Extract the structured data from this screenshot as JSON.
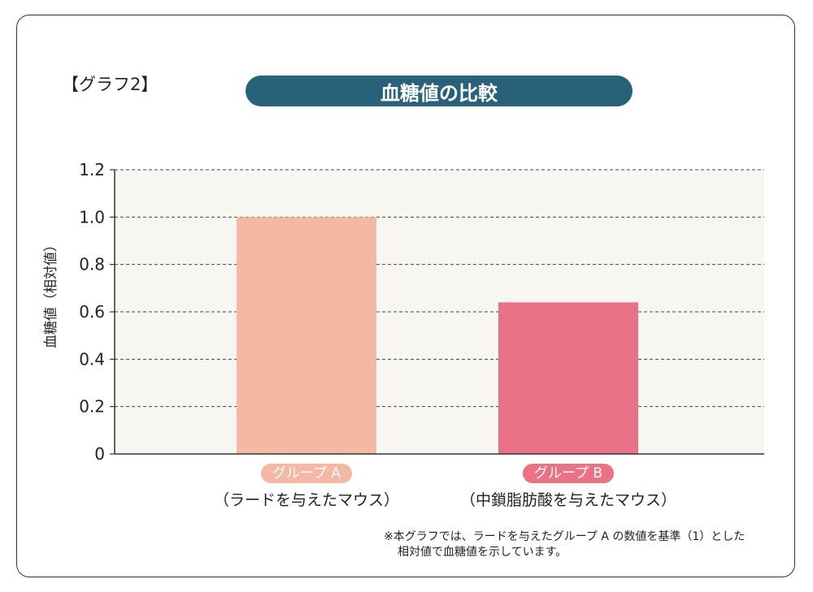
{
  "graph_label": "【グラフ2】",
  "chart_data": {
    "type": "bar",
    "title": "血糖値の比較",
    "ylabel": "血糖値（相対値）",
    "ylim": [
      0,
      1.2
    ],
    "yticks": [
      "0",
      "0.2",
      "0.4",
      "0.6",
      "0.8",
      "1.0",
      "1.2"
    ],
    "ytick_values": [
      0,
      0.2,
      0.4,
      0.6,
      0.8,
      1.0,
      1.2
    ],
    "grid": true,
    "categories": [
      {
        "name": "グループ A",
        "sub": "（ラードを与えたマウス）",
        "color": "#f4b9a4"
      },
      {
        "name": "グループ B",
        "sub": "（中鎖脂肪酸を与えたマウス）",
        "color": "#ea7286"
      }
    ],
    "values": [
      1.0,
      0.64
    ]
  },
  "note": {
    "line1": "※本グラフでは、ラードを与えたグループ A の数値を基準（1）とした",
    "line2": "相対値で血糖値を示しています。"
  },
  "colors": {
    "title_bg": "#27617a",
    "plot_bg": "#f8f6f0",
    "group_a": "#f4b9a4",
    "group_b": "#ea7286"
  }
}
